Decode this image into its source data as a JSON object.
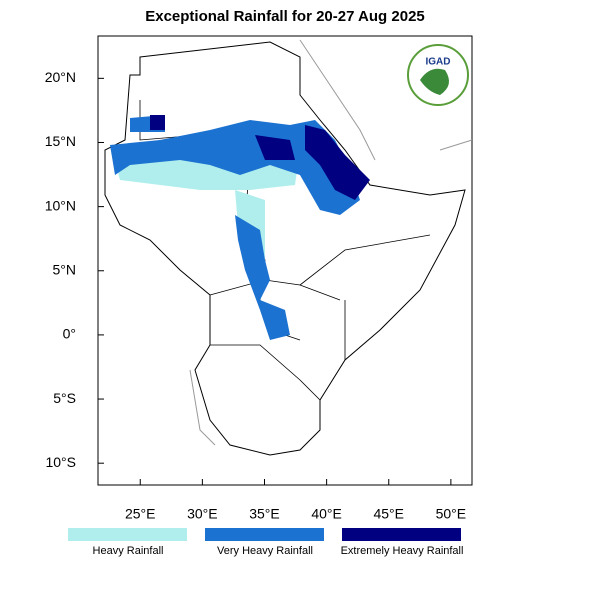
{
  "map": {
    "title": "Exceptional Rainfall for 20-27 Aug 2025",
    "logo_text": "IGAD",
    "xlim": [
      21.6,
      51.7
    ],
    "ylim": [
      -11.7,
      23.3
    ],
    "xticks": [
      {
        "value": 25,
        "label": "25°E"
      },
      {
        "value": 30,
        "label": "30°E"
      },
      {
        "value": 35,
        "label": "35°E"
      },
      {
        "value": 40,
        "label": "40°E"
      },
      {
        "value": 45,
        "label": "45°E"
      },
      {
        "value": 50,
        "label": "50°E"
      }
    ],
    "yticks": [
      {
        "value": 20,
        "label": "20°N"
      },
      {
        "value": 15,
        "label": "15°N"
      },
      {
        "value": 10,
        "label": "10°N"
      },
      {
        "value": 5,
        "label": "5°N"
      },
      {
        "value": 0,
        "label": "0°"
      },
      {
        "value": -5,
        "label": "5°S"
      },
      {
        "value": -10,
        "label": "10°S"
      }
    ],
    "legend": [
      {
        "name": "Heavy Rainfall",
        "color": "#b0eeee"
      },
      {
        "name": "Very Heavy Rainfall",
        "color": "#1c72d0"
      },
      {
        "name": "Extremely Heavy Rainfall",
        "color": "#000080"
      }
    ]
  }
}
